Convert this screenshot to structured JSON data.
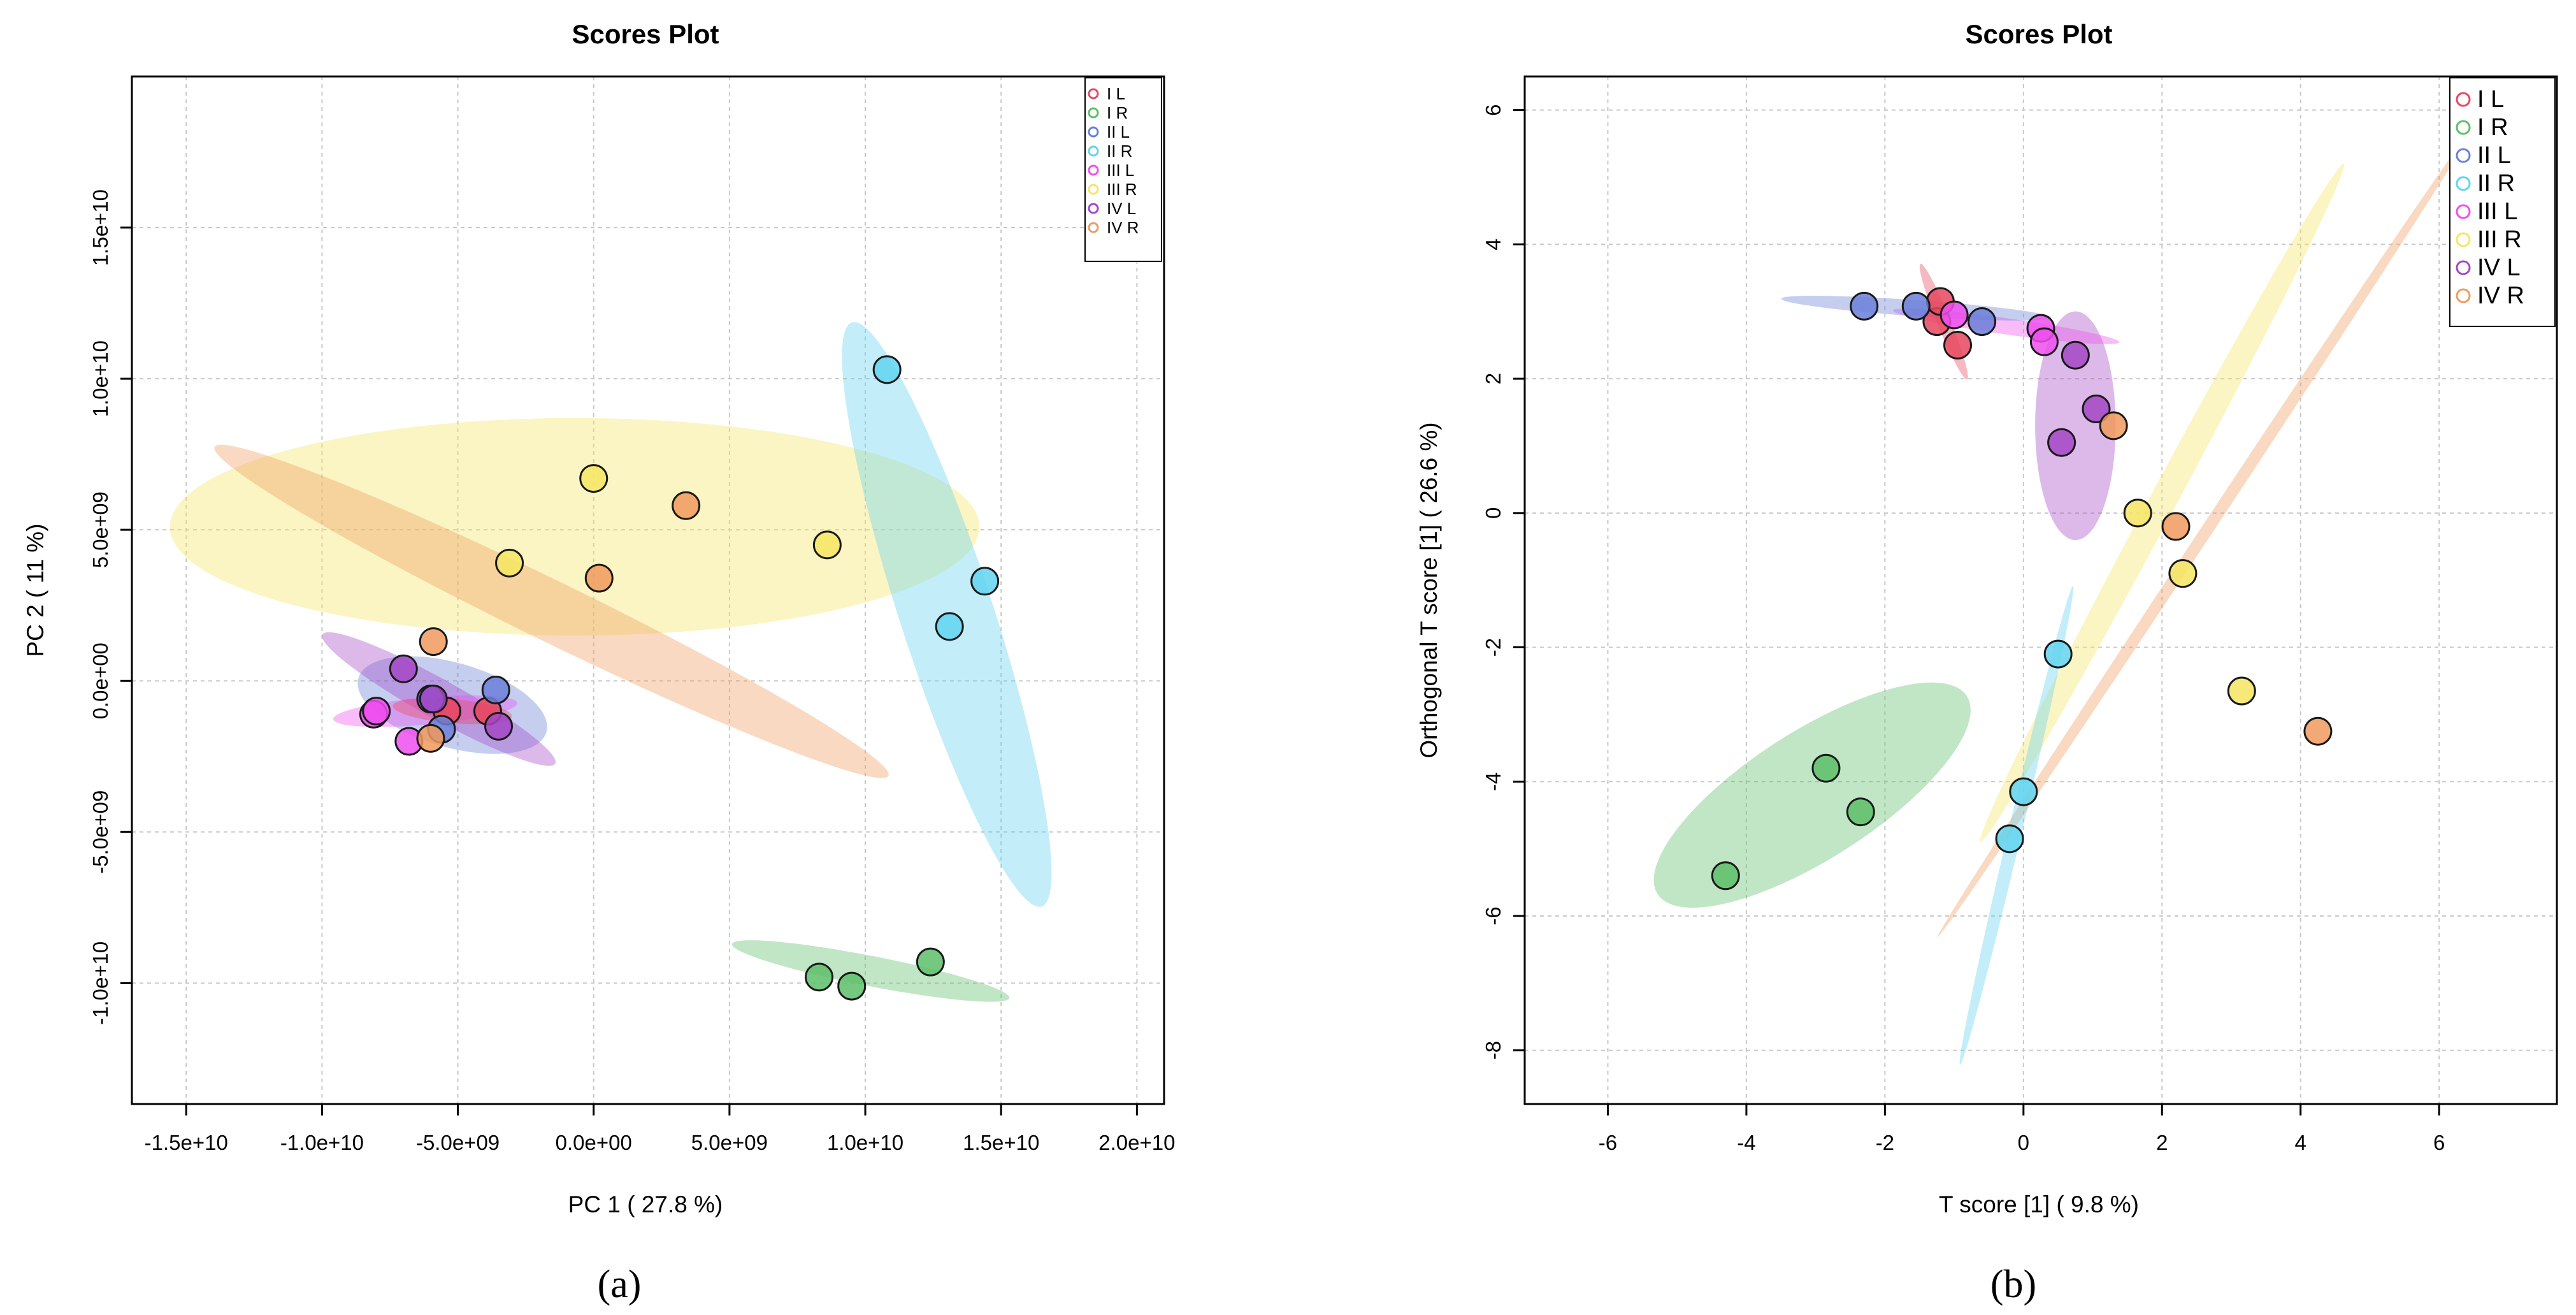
{
  "groups": [
    {
      "name": "I L",
      "color": "#E8465E"
    },
    {
      "name": "I R",
      "color": "#5DBE68"
    },
    {
      "name": "II L",
      "color": "#6A7FD8"
    },
    {
      "name": "II R",
      "color": "#62D3EE"
    },
    {
      "name": "III L",
      "color": "#EE4FEE"
    },
    {
      "name": "III R",
      "color": "#F5E561"
    },
    {
      "name": "IV L",
      "color": "#A347C4"
    },
    {
      "name": "IV R",
      "color": "#F09A5D"
    }
  ],
  "captions": {
    "a": "(a)",
    "b": "(b)"
  },
  "chart_data": [
    {
      "type": "scatter",
      "title": "Scores Plot",
      "xlabel": "PC 1 ( 27.8 %)",
      "ylabel": "PC 2 ( 11 %)",
      "xlim": [
        -17000000000.0,
        21000000000.0
      ],
      "ylim": [
        -14000000000.0,
        20000000000.0
      ],
      "xticks": [
        -15000000000.0,
        -10000000000.0,
        -5000000000.0,
        0,
        5000000000.0,
        10000000000.0,
        15000000000.0,
        20000000000.0
      ],
      "xtick_labels": [
        "-1.5e+10",
        "-1.0e+10",
        "-5.0e+09",
        "0.0e+00",
        "5.0e+09",
        "1.0e+10",
        "1.5e+10",
        "2.0e+10"
      ],
      "yticks": [
        -10000000000.0,
        -5000000000.0,
        0,
        5000000000.0,
        10000000000.0,
        15000000000.0
      ],
      "ytick_labels": [
        "-1.0e+10",
        "-5.0e+09",
        "0.0e+00",
        "5.0e+09",
        "1.0e+10",
        "1.5e+10"
      ],
      "grid": true,
      "legend_position": "top-right",
      "ellipses": [
        {
          "group": "III R",
          "cx": -700000000.0,
          "cy": 5100000000.0,
          "rx": 14900000000.0,
          "ry": 3600000000.0,
          "angle": 0,
          "opacity": 0.38
        },
        {
          "group": "IV R",
          "cx": -1550000000.0,
          "cy": 2300000000.0,
          "rx": 13800000000.0,
          "ry": 1000000000.0,
          "angle": -26,
          "opacity": 0.38
        },
        {
          "group": "II R",
          "cx": 13000000000.0,
          "cy": 2200000000.0,
          "rx": 11300000000.0,
          "ry": 1550000000.0,
          "angle": -72,
          "opacity": 0.38
        },
        {
          "group": "I R",
          "cx": 10200000000.0,
          "cy": -9600000000.0,
          "rx": 5200000000.0,
          "ry": 500000000.0,
          "angle": -11,
          "opacity": 0.38
        },
        {
          "group": "II L",
          "cx": -5200000000.0,
          "cy": -800000000.0,
          "rx": 3600000000.0,
          "ry": 1400000000.0,
          "angle": -16,
          "opacity": 0.38
        },
        {
          "group": "IV L",
          "cx": -5700000000.0,
          "cy": -600000000.0,
          "rx": 4900000000.0,
          "ry": 650000000.0,
          "angle": -29,
          "opacity": 0.38
        },
        {
          "group": "III L",
          "cx": -6200000000.0,
          "cy": -1000000000.0,
          "rx": 3400000000.0,
          "ry": 450000000.0,
          "angle": 5,
          "opacity": 0.38
        },
        {
          "group": "I L",
          "cx": -5200000000.0,
          "cy": -1000000000.0,
          "rx": 2200000000.0,
          "ry": 400000000.0,
          "angle": -5,
          "opacity": 0.38
        }
      ],
      "series": [
        {
          "name": "I L",
          "x": [
            -5400000000.0,
            -3900000000.0
          ],
          "y": [
            -1000000000.0,
            -1000000000.0
          ]
        },
        {
          "name": "I R",
          "x": [
            8300000000.0,
            9500000000.0,
            12400000000.0
          ],
          "y": [
            -9800000000.0,
            -10100000000.0,
            -9300000000.0
          ]
        },
        {
          "name": "II L",
          "x": [
            -5600000000.0,
            -3600000000.0,
            -6000000000.0
          ],
          "y": [
            -1600000000.0,
            -300000000.0,
            -600000000.0
          ]
        },
        {
          "name": "II R",
          "x": [
            10800000000.0,
            14400000000.0,
            13100000000.0
          ],
          "y": [
            10300000000.0,
            3300000000.0,
            1800000000.0
          ]
        },
        {
          "name": "III L",
          "x": [
            -8100000000.0,
            -6800000000.0,
            -8000000000.0
          ],
          "y": [
            -1100000000.0,
            -2000000000.0,
            -1000000000.0
          ]
        },
        {
          "name": "III R",
          "x": [
            -3100000000.0,
            0.0,
            8600000000.0
          ],
          "y": [
            3900000000.0,
            6700000000.0,
            4500000000.0
          ]
        },
        {
          "name": "IV L",
          "x": [
            -7000000000.0,
            -5900000000.0,
            -3500000000.0
          ],
          "y": [
            400000000.0,
            -600000000.0,
            -1500000000.0
          ]
        },
        {
          "name": "IV R",
          "x": [
            -5900000000.0,
            200000000.0,
            3400000000.0,
            -6000000000.0
          ],
          "y": [
            1300000000.0,
            3400000000.0,
            5800000000.0,
            -1900000000.0
          ]
        }
      ]
    },
    {
      "type": "scatter",
      "title": "Scores Plot",
      "xlabel": "T score [1] ( 9.8 %)",
      "ylabel": "Orthogonal T score [1] ( 26.6 %)",
      "xlim": [
        -7.2,
        7.7
      ],
      "ylim": [
        -8.8,
        6.5
      ],
      "xticks": [
        -6,
        -4,
        -2,
        0,
        2,
        4,
        6
      ],
      "xtick_labels": [
        "-6",
        "-4",
        "-2",
        "0",
        "2",
        "4",
        "6"
      ],
      "yticks": [
        -8,
        -6,
        -4,
        -2,
        0,
        2,
        4,
        6
      ],
      "ytick_labels": [
        "-8",
        "-6",
        "-4",
        "-2",
        "0",
        "2",
        "4",
        "6"
      ],
      "grid": true,
      "legend_position": "top-right",
      "ellipses": [
        {
          "group": "IV R",
          "cx": 2.65,
          "cy": -0.25,
          "rx": 7.05,
          "ry": 0.09,
          "angle": 56.5,
          "opacity": 0.38
        },
        {
          "group": "III R",
          "cx": 2.0,
          "cy": 0.15,
          "rx": 5.55,
          "ry": 0.2,
          "angle": 61.8,
          "opacity": 0.38
        },
        {
          "group": "II R",
          "cx": -0.1,
          "cy": -4.65,
          "rx": 3.55,
          "ry": 0.1,
          "angle": 76.7,
          "opacity": 0.38
        },
        {
          "group": "I R",
          "cx": -3.05,
          "cy": -4.2,
          "rx": 2.65,
          "ry": 0.95,
          "angle": 32.6,
          "opacity": 0.38
        },
        {
          "group": "IV L",
          "cx": 0.75,
          "cy": 1.3,
          "rx": 1.65,
          "ry": 0.6,
          "angle": 90,
          "opacity": 0.38
        },
        {
          "group": "III L",
          "cx": -0.25,
          "cy": 2.78,
          "rx": 1.65,
          "ry": 0.12,
          "angle": -8,
          "opacity": 0.38
        },
        {
          "group": "II L",
          "cx": -1.55,
          "cy": 3.05,
          "rx": 1.95,
          "ry": 0.12,
          "angle": -4,
          "opacity": 0.38
        },
        {
          "group": "I L",
          "cx": -1.15,
          "cy": 2.85,
          "rx": 0.9,
          "ry": 0.1,
          "angle": -68,
          "opacity": 0.38
        }
      ],
      "series": [
        {
          "name": "I L",
          "x": [
            -1.25,
            -1.2,
            -0.95
          ],
          "y": [
            2.85,
            3.15,
            2.5
          ]
        },
        {
          "name": "I R",
          "x": [
            -4.3,
            -2.85,
            -2.35
          ],
          "y": [
            -5.4,
            -3.8,
            -4.45
          ]
        },
        {
          "name": "II L",
          "x": [
            -2.3,
            -1.55,
            -0.6
          ],
          "y": [
            3.08,
            3.08,
            2.85
          ]
        },
        {
          "name": "II R",
          "x": [
            0.5,
            0.0,
            -0.2
          ],
          "y": [
            -2.1,
            -4.15,
            -4.85
          ]
        },
        {
          "name": "III L",
          "x": [
            -1.0,
            0.25,
            0.3
          ],
          "y": [
            2.95,
            2.75,
            2.55
          ]
        },
        {
          "name": "III R",
          "x": [
            1.65,
            2.3,
            3.15
          ],
          "y": [
            0.0,
            -0.9,
            -2.65
          ]
        },
        {
          "name": "IV L",
          "x": [
            0.75,
            1.05,
            0.55
          ],
          "y": [
            2.35,
            1.55,
            1.05
          ]
        },
        {
          "name": "IV R",
          "x": [
            1.3,
            2.2,
            4.25
          ],
          "y": [
            1.3,
            -0.2,
            -3.25
          ]
        }
      ]
    }
  ]
}
